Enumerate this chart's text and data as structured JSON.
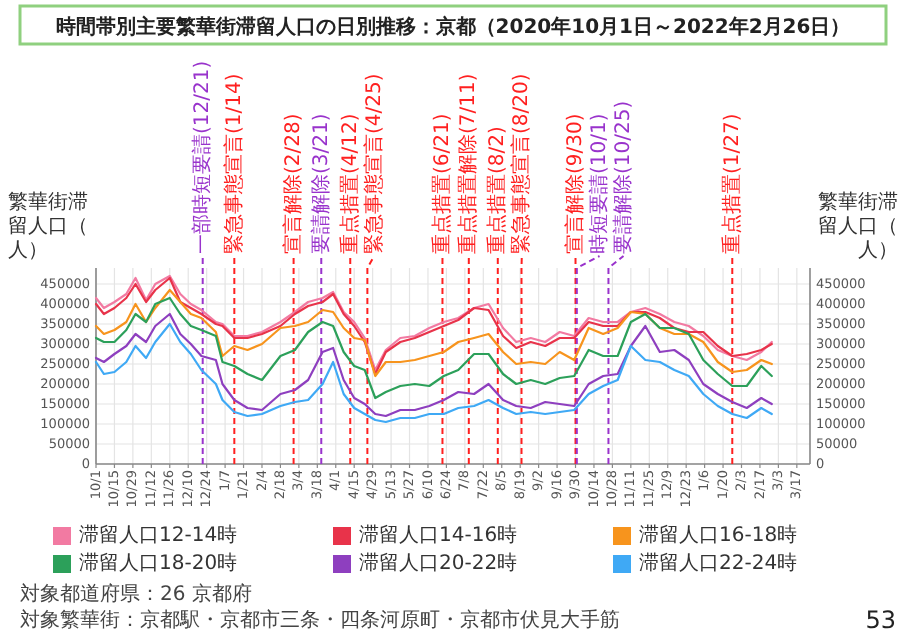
{
  "chart_data": {
    "type": "line",
    "title": "時間帯別主要繁華街滞留人口の日別推移：京都（2020年10月1日～2022年2月26日）",
    "ylabel": "繁華街滞留人口（人）",
    "y2label": "繁華街滞留人口（人）",
    "x": [
      "2020-10-01",
      "2020-10-07",
      "2020-10-15",
      "2020-10-24",
      "2020-10-31",
      "2020-11-08",
      "2020-11-15",
      "2020-11-26",
      "2020-12-04",
      "2020-12-12",
      "2020-12-20",
      "2020-12-31",
      "2021-01-05",
      "2021-01-14",
      "2021-01-24",
      "2021-02-04",
      "2021-02-18",
      "2021-03-01",
      "2021-03-11",
      "2021-03-22",
      "2021-03-30",
      "2021-04-07",
      "2021-04-15",
      "2021-04-23",
      "2021-05-01",
      "2021-05-09",
      "2021-05-20",
      "2021-05-31",
      "2021-06-11",
      "2021-06-22",
      "2021-07-03",
      "2021-07-15",
      "2021-07-26",
      "2021-08-06",
      "2021-08-16",
      "2021-08-27",
      "2021-09-07",
      "2021-09-18",
      "2021-09-29",
      "2021-10-10",
      "2021-10-21",
      "2021-11-01",
      "2021-11-11",
      "2021-11-22",
      "2021-12-03",
      "2021-12-14",
      "2021-12-25",
      "2022-01-05",
      "2022-01-16",
      "2022-01-27",
      "2022-02-07",
      "2022-02-18",
      "2022-02-26"
    ],
    "series": [
      {
        "name": "滞留人口12-14時",
        "color": "#f27aa2",
        "values": [
          415000,
          390000,
          405000,
          425000,
          465000,
          410000,
          450000,
          470000,
          425000,
          400000,
          385000,
          355000,
          350000,
          320000,
          320000,
          330000,
          355000,
          380000,
          405000,
          415000,
          430000,
          380000,
          355000,
          315000,
          235000,
          285000,
          315000,
          320000,
          340000,
          355000,
          365000,
          390000,
          400000,
          340000,
          305000,
          315000,
          305000,
          330000,
          320000,
          365000,
          355000,
          355000,
          380000,
          390000,
          375000,
          355000,
          345000,
          320000,
          285000,
          270000,
          260000,
          280000,
          305000
        ]
      },
      {
        "name": "滞留人口14-16時",
        "color": "#e8334a",
        "values": [
          400000,
          375000,
          390000,
          415000,
          450000,
          405000,
          435000,
          465000,
          405000,
          390000,
          375000,
          350000,
          345000,
          315000,
          315000,
          325000,
          345000,
          375000,
          395000,
          405000,
          425000,
          375000,
          345000,
          305000,
          225000,
          280000,
          305000,
          315000,
          330000,
          345000,
          360000,
          390000,
          385000,
          320000,
          290000,
          305000,
          295000,
          315000,
          315000,
          355000,
          345000,
          345000,
          380000,
          380000,
          365000,
          340000,
          330000,
          330000,
          295000,
          270000,
          275000,
          285000,
          300000
        ]
      },
      {
        "name": "滞留人口16-18時",
        "color": "#f7941d",
        "values": [
          345000,
          325000,
          335000,
          355000,
          400000,
          355000,
          390000,
          435000,
          405000,
          375000,
          365000,
          330000,
          270000,
          295000,
          285000,
          300000,
          340000,
          345000,
          355000,
          385000,
          380000,
          340000,
          315000,
          310000,
          220000,
          255000,
          255000,
          260000,
          270000,
          280000,
          305000,
          315000,
          325000,
          280000,
          250000,
          255000,
          250000,
          280000,
          260000,
          340000,
          325000,
          340000,
          380000,
          375000,
          340000,
          325000,
          325000,
          305000,
          255000,
          230000,
          235000,
          260000,
          250000
        ]
      },
      {
        "name": "滞留人口18-20時",
        "color": "#2ca05a",
        "values": [
          315000,
          305000,
          305000,
          335000,
          375000,
          355000,
          400000,
          415000,
          375000,
          345000,
          335000,
          320000,
          255000,
          245000,
          225000,
          210000,
          270000,
          285000,
          330000,
          355000,
          345000,
          280000,
          245000,
          235000,
          165000,
          180000,
          195000,
          200000,
          195000,
          220000,
          235000,
          275000,
          275000,
          225000,
          200000,
          210000,
          200000,
          215000,
          220000,
          285000,
          270000,
          270000,
          355000,
          375000,
          340000,
          340000,
          325000,
          260000,
          225000,
          195000,
          195000,
          245000,
          220000
        ]
      },
      {
        "name": "滞留人口20-22時",
        "color": "#8e3fbf",
        "values": [
          265000,
          255000,
          275000,
          295000,
          325000,
          305000,
          345000,
          375000,
          325000,
          300000,
          270000,
          260000,
          200000,
          160000,
          140000,
          135000,
          175000,
          185000,
          210000,
          280000,
          290000,
          210000,
          165000,
          150000,
          125000,
          120000,
          135000,
          135000,
          145000,
          160000,
          180000,
          175000,
          200000,
          160000,
          145000,
          140000,
          155000,
          150000,
          145000,
          200000,
          220000,
          225000,
          295000,
          345000,
          280000,
          285000,
          260000,
          200000,
          175000,
          155000,
          140000,
          165000,
          150000
        ]
      },
      {
        "name": "滞留人口22-24時",
        "color": "#3fa9f5",
        "values": [
          255000,
          225000,
          230000,
          255000,
          295000,
          265000,
          305000,
          350000,
          305000,
          275000,
          235000,
          200000,
          160000,
          130000,
          120000,
          125000,
          145000,
          155000,
          160000,
          200000,
          255000,
          175000,
          140000,
          125000,
          110000,
          105000,
          115000,
          115000,
          125000,
          125000,
          140000,
          145000,
          160000,
          140000,
          125000,
          130000,
          125000,
          130000,
          135000,
          175000,
          195000,
          210000,
          295000,
          260000,
          255000,
          235000,
          220000,
          175000,
          145000,
          125000,
          115000,
          140000,
          125000
        ]
      }
    ],
    "xlim": [
      "2020-10-01",
      "2022-03-27"
    ],
    "xticks": [
      {
        "value": "2020-10-01",
        "label": "10/1"
      },
      {
        "value": "2020-10-15",
        "label": "10/15"
      },
      {
        "value": "2020-10-29",
        "label": "10/29"
      },
      {
        "value": "2020-11-12",
        "label": "11/12"
      },
      {
        "value": "2020-11-26",
        "label": "11/26"
      },
      {
        "value": "2020-12-10",
        "label": "12/10"
      },
      {
        "value": "2020-12-24",
        "label": "12/24"
      },
      {
        "value": "2021-01-07",
        "label": "1/7"
      },
      {
        "value": "2021-01-21",
        "label": "1/21"
      },
      {
        "value": "2021-02-04",
        "label": "2/4"
      },
      {
        "value": "2021-02-18",
        "label": "2/18"
      },
      {
        "value": "2021-03-04",
        "label": "3/4"
      },
      {
        "value": "2021-03-18",
        "label": "3/18"
      },
      {
        "value": "2021-04-01",
        "label": "4/1"
      },
      {
        "value": "2021-04-15",
        "label": "4/15"
      },
      {
        "value": "2021-04-29",
        "label": "4/29"
      },
      {
        "value": "2021-05-13",
        "label": "5/13"
      },
      {
        "value": "2021-05-27",
        "label": "5/27"
      },
      {
        "value": "2021-06-10",
        "label": "6/10"
      },
      {
        "value": "2021-06-24",
        "label": "6/24"
      },
      {
        "value": "2021-07-08",
        "label": "7/8"
      },
      {
        "value": "2021-07-22",
        "label": "7/22"
      },
      {
        "value": "2021-08-05",
        "label": "8/5"
      },
      {
        "value": "2021-08-19",
        "label": "8/19"
      },
      {
        "value": "2021-09-02",
        "label": "9/2"
      },
      {
        "value": "2021-09-16",
        "label": "9/16"
      },
      {
        "value": "2021-09-30",
        "label": "9/30"
      },
      {
        "value": "2021-10-14",
        "label": "10/14"
      },
      {
        "value": "2021-10-28",
        "label": "10/28"
      },
      {
        "value": "2021-11-11",
        "label": "11/11"
      },
      {
        "value": "2021-11-25",
        "label": "11/25"
      },
      {
        "value": "2021-12-09",
        "label": "12/9"
      },
      {
        "value": "2021-12-23",
        "label": "12/23"
      },
      {
        "value": "2022-01-06",
        "label": "1/6"
      },
      {
        "value": "2022-01-20",
        "label": "1/20"
      },
      {
        "value": "2022-02-03",
        "label": "2/3"
      },
      {
        "value": "2022-02-17",
        "label": "2/17"
      },
      {
        "value": "2022-03-03",
        "label": "3/3"
      },
      {
        "value": "2022-03-17",
        "label": "3/17"
      }
    ],
    "ylim": [
      0,
      490000
    ],
    "yticks": [
      0,
      50000,
      100000,
      150000,
      200000,
      250000,
      300000,
      350000,
      400000,
      450000
    ],
    "y2lim": [
      0,
      490000
    ],
    "y2ticks": [
      0,
      50000,
      100000,
      150000,
      200000,
      250000,
      300000,
      350000,
      400000,
      450000
    ],
    "grid": true,
    "legend": "bottom",
    "ref_lines": [
      {
        "axis": "x",
        "value": "2020-12-21",
        "label": "一部時短要請(12/21)",
        "color": "#9933cc",
        "line_style": "dashed"
      },
      {
        "axis": "x",
        "value": "2021-01-14",
        "label": "緊急事態宣言(1/14)",
        "color": "#ff2020",
        "line_style": "dashed"
      },
      {
        "axis": "x",
        "value": "2021-02-28",
        "label": "宣言解除(2/28)",
        "color": "#ff2020",
        "line_style": "dashed"
      },
      {
        "axis": "x",
        "value": "2021-03-21",
        "label": "要請解除(3/21)",
        "color": "#9933cc",
        "line_style": "dashed"
      },
      {
        "axis": "x",
        "value": "2021-04-12",
        "label": "重点措置(4/12)",
        "color": "#ff2020",
        "line_style": "dashed"
      },
      {
        "axis": "x",
        "value": "2021-04-25",
        "label": "緊急事態宣言(4/25)",
        "color": "#ff2020",
        "line_style": "dashed"
      },
      {
        "axis": "x",
        "value": "2021-06-21",
        "label": "重点措置(6/21)",
        "color": "#ff2020",
        "line_style": "dashed"
      },
      {
        "axis": "x",
        "value": "2021-07-11",
        "label": "重点措置解除(7/11)",
        "color": "#ff2020",
        "line_style": "dashed"
      },
      {
        "axis": "x",
        "value": "2021-08-02",
        "label": "重点措置(8/2)",
        "color": "#ff2020",
        "line_style": "dashed"
      },
      {
        "axis": "x",
        "value": "2021-08-20",
        "label": "緊急事態宣言(8/20)",
        "color": "#ff2020",
        "line_style": "dashed"
      },
      {
        "axis": "x",
        "value": "2021-09-30",
        "label": "宣言解除(9/30)",
        "color": "#ff2020",
        "line_style": "dashed"
      },
      {
        "axis": "x",
        "value": "2021-10-01",
        "label": "時短要請(10/1)",
        "color": "#9933cc",
        "line_style": "dashed"
      },
      {
        "axis": "x",
        "value": "2021-10-25",
        "label": "要請解除(10/25)",
        "color": "#9933cc",
        "line_style": "dashed"
      },
      {
        "axis": "x",
        "value": "2022-01-27",
        "label": "重点措置(1/27)",
        "color": "#ff2020",
        "line_style": "dashed"
      }
    ],
    "annotations": [
      "対象都道府県：26 京都府",
      "対象繁華街：京都駅・京都市三条・四条河原町・京都市伏見大手筋",
      "53"
    ]
  }
}
